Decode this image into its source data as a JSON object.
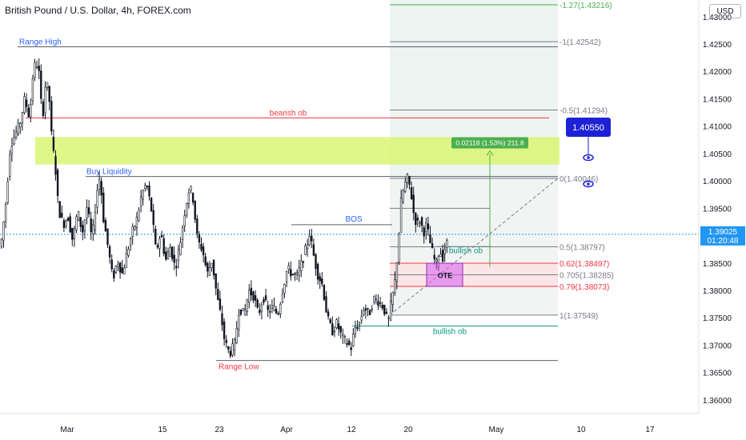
{
  "header": {
    "title": "British Pound / U.S. Dollar, 4h, FOREX.com",
    "currency_button": "USD"
  },
  "price_badge": {
    "price": "1.39025",
    "countdown": "01:20:48"
  },
  "colors": {
    "up": "#131722",
    "down": "#131722",
    "red": "#f23645",
    "green": "#22ab94",
    "blue": "#2962ff",
    "accent": "#089981"
  },
  "chart_data": {
    "type": "candlestick",
    "symbol": "GBPUSD",
    "interval": "4h",
    "ylim": [
      1.3575,
      1.4326
    ],
    "y_ticks": [
      "1.36000",
      "1.36500",
      "1.37000",
      "1.37500",
      "1.38000",
      "1.38500",
      "1.39000",
      "1.39500",
      "1.40000",
      "1.40500",
      "1.41000",
      "1.41500",
      "1.42000",
      "1.42500",
      "1.43000"
    ],
    "x_ticks": [
      "Mar",
      "15",
      "23",
      "Apr",
      "12",
      "20",
      "May",
      "10",
      "17"
    ],
    "path": [
      [
        0,
        1.388
      ],
      [
        6,
        1.3955
      ],
      [
        12,
        1.4065
      ],
      [
        18,
        1.4085
      ],
      [
        24,
        1.4105
      ],
      [
        30,
        1.415
      ],
      [
        36,
        1.4115
      ],
      [
        40,
        1.419
      ],
      [
        44,
        1.422
      ],
      [
        48,
        1.4195
      ],
      [
        52,
        1.411
      ],
      [
        56,
        1.418
      ],
      [
        60,
        1.4165
      ],
      [
        64,
        1.407
      ],
      [
        68,
        1.403
      ],
      [
        72,
        1.395
      ],
      [
        78,
        1.392
      ],
      [
        84,
        1.3935
      ],
      [
        90,
        1.389
      ],
      [
        96,
        1.3945
      ],
      [
        102,
        1.3905
      ],
      [
        108,
        1.3955
      ],
      [
        114,
        1.389
      ],
      [
        120,
        1.398
      ],
      [
        124,
        1.401
      ],
      [
        128,
        1.3935
      ],
      [
        134,
        1.388
      ],
      [
        140,
        1.382
      ],
      [
        146,
        1.3855
      ],
      [
        152,
        1.383
      ],
      [
        158,
        1.387
      ],
      [
        164,
        1.3905
      ],
      [
        170,
        1.393
      ],
      [
        176,
        1.3975
      ],
      [
        182,
        1.3995
      ],
      [
        188,
        1.395
      ],
      [
        194,
        1.387
      ],
      [
        200,
        1.3905
      ],
      [
        206,
        1.3855
      ],
      [
        212,
        1.388
      ],
      [
        218,
        1.384
      ],
      [
        224,
        1.3885
      ],
      [
        230,
        1.3945
      ],
      [
        236,
        1.399
      ],
      [
        240,
        1.397
      ],
      [
        246,
        1.389
      ],
      [
        252,
        1.3875
      ],
      [
        258,
        1.383
      ],
      [
        264,
        1.3855
      ],
      [
        270,
        1.379
      ],
      [
        276,
        1.3745
      ],
      [
        280,
        1.3705
      ],
      [
        286,
        1.3685
      ],
      [
        292,
        1.37
      ],
      [
        298,
        1.377
      ],
      [
        304,
        1.3755
      ],
      [
        310,
        1.38
      ],
      [
        316,
        1.379
      ],
      [
        322,
        1.3755
      ],
      [
        328,
        1.379
      ],
      [
        334,
        1.376
      ],
      [
        340,
        1.377
      ],
      [
        346,
        1.3755
      ],
      [
        352,
        1.38
      ],
      [
        358,
        1.384
      ],
      [
        364,
        1.383
      ],
      [
        370,
        1.3825
      ],
      [
        376,
        1.385
      ],
      [
        382,
        1.388
      ],
      [
        386,
        1.3905
      ],
      [
        390,
        1.387
      ],
      [
        396,
        1.383
      ],
      [
        402,
        1.381
      ],
      [
        408,
        1.375
      ],
      [
        414,
        1.3725
      ],
      [
        420,
        1.374
      ],
      [
        426,
        1.3715
      ],
      [
        432,
        1.3705
      ],
      [
        438,
        1.3695
      ],
      [
        442,
        1.373
      ],
      [
        448,
        1.374
      ],
      [
        454,
        1.377
      ],
      [
        460,
        1.3755
      ],
      [
        466,
        1.3785
      ],
      [
        472,
        1.378
      ],
      [
        478,
        1.377
      ],
      [
        484,
        1.374
      ],
      [
        488,
        1.378
      ],
      [
        492,
        1.381
      ],
      [
        496,
        1.387
      ],
      [
        500,
        1.396
      ],
      [
        504,
        1.399
      ],
      [
        508,
        1.4005
      ],
      [
        512,
        1.3985
      ],
      [
        516,
        1.394
      ],
      [
        520,
        1.392
      ],
      [
        524,
        1.393
      ],
      [
        528,
        1.3905
      ],
      [
        532,
        1.392
      ],
      [
        536,
        1.389
      ],
      [
        540,
        1.3865
      ],
      [
        544,
        1.3845
      ],
      [
        548,
        1.3875
      ],
      [
        552,
        1.386
      ],
      [
        556,
        1.3885
      ],
      [
        560,
        1.3885
      ]
    ],
    "annotations": {
      "range_high": {
        "label": "Range High",
        "price": 1.4245
      },
      "range_low": {
        "label": "Range Low",
        "price": 1.3672
      },
      "bearish_ob": {
        "label": "bearish ob",
        "price": 1.4115
      },
      "buy_liquidity": {
        "label": "Buy Liquidity",
        "price": 1.4008
      },
      "bos": {
        "label": "BOS",
        "price": 1.392
      },
      "bullish_ob_upper": {
        "label": "bullish ob",
        "price": 1.388
      },
      "bullish_ob_lower": {
        "label": "bullish ob",
        "price": 1.3735
      },
      "ote": {
        "label": "OTE",
        "top": 1.38497,
        "bottom": 1.38073
      },
      "supply_zone": {
        "top": 1.408,
        "bottom": 1.403
      },
      "fib_levels": [
        {
          "ratio": "-1.27",
          "price": 1.43216,
          "label": "-1.27(1.43216)",
          "color": "#4caf50"
        },
        {
          "ratio": "-1",
          "price": 1.42542,
          "label": "-1(1.42542)",
          "color": "#787b86"
        },
        {
          "ratio": "-0.5",
          "price": 1.41294,
          "label": "-0.5(1.41294)",
          "color": "#787b86"
        },
        {
          "ratio": "0",
          "price": 1.40046,
          "label": "0(1.40046)",
          "color": "#787b86"
        },
        {
          "ratio": "0.5",
          "price": 1.38797,
          "label": "0.5(1.38797)",
          "color": "#787b86"
        },
        {
          "ratio": "0.62",
          "price": 1.38497,
          "label": "0.62(1.38497)",
          "color": "#f23645"
        },
        {
          "ratio": "0.705",
          "price": 1.38285,
          "label": "0.705(1.38285)",
          "color": "#787b86"
        },
        {
          "ratio": "0.79",
          "price": 1.38073,
          "label": "0.79(1.38073)",
          "color": "#f23645"
        },
        {
          "ratio": "1",
          "price": 1.37549,
          "label": "1(1.37549)",
          "color": "#787b86"
        }
      ],
      "target_badge": {
        "price": 1.4055,
        "label": "1.40550"
      },
      "measure": {
        "label": "0.02118 (1.53%) 211.8",
        "from": 1.3843,
        "to": 1.4055
      },
      "current_price": 1.39025
    }
  }
}
